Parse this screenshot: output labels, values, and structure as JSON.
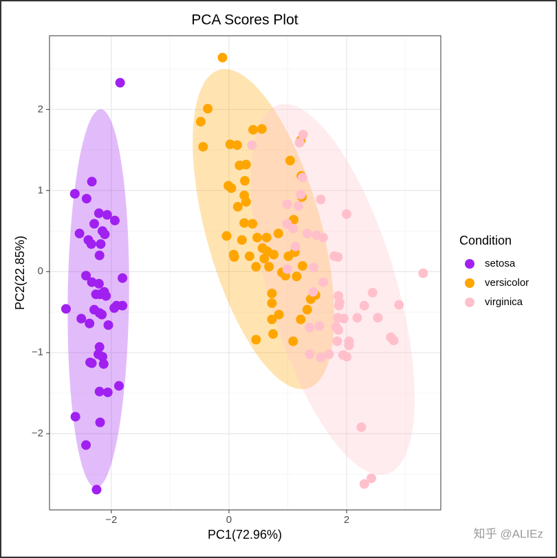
{
  "chart_data": {
    "type": "scatter",
    "title": "PCA Scores Plot",
    "x_label": "PC1(72.96%)",
    "y_label": "PC2(22.85%)",
    "legend_title": "Condition",
    "legend_position": "right",
    "grid": true,
    "ellipses": true,
    "xlim": [
      -3.05,
      3.6
    ],
    "ylim": [
      -2.94,
      2.91
    ],
    "xticks": [
      {
        "value": -2,
        "label": "−2"
      },
      0,
      2
    ],
    "yticks": [
      {
        "value": -2,
        "label": "−2"
      },
      {
        "value": -1,
        "label": "−1"
      },
      0,
      1,
      2
    ],
    "series": [
      {
        "name": "setosa",
        "color": "#a020f0",
        "x": [
          -1.85,
          -2.33,
          -2.62,
          -2.42,
          -2.21,
          -2.07,
          -1.94,
          -2.29,
          -2.54,
          -2.15,
          -2.11,
          -2.39,
          -2.34,
          -2.18,
          -2.2,
          -1.81,
          -2.43,
          -2.33,
          -2.21,
          -2.12,
          -2.19,
          -2.26,
          -2.09,
          -1.81,
          -1.91,
          -1.95,
          -2.77,
          -2.29,
          -2.2,
          -2.16,
          -2.51,
          -2.37,
          -2.05,
          -2.2,
          -2.22,
          -2.15,
          -2.36,
          -2.33,
          -2.13,
          -1.87,
          -2.2,
          -2.06,
          -2.61,
          -2.19,
          -2.43,
          -2.25
        ],
        "y": [
          2.33,
          1.11,
          0.96,
          0.9,
          0.72,
          0.7,
          0.63,
          0.59,
          0.47,
          0.5,
          0.46,
          0.39,
          0.34,
          0.34,
          0.2,
          -0.08,
          -0.05,
          -0.13,
          -0.15,
          -0.25,
          -0.28,
          -0.28,
          -0.3,
          -0.42,
          -0.42,
          -0.45,
          -0.46,
          -0.47,
          -0.51,
          -0.53,
          -0.58,
          -0.64,
          -0.66,
          -0.93,
          -1.02,
          -1.05,
          -1.12,
          -1.13,
          -1.14,
          -1.41,
          -1.48,
          -1.49,
          -1.79,
          -1.86,
          -2.14,
          -2.69
        ]
      },
      {
        "name": "versicolor",
        "color": "#ffa500",
        "x": [
          -0.11,
          -0.36,
          -0.48,
          0.56,
          0.41,
          -0.44,
          1.22,
          0.02,
          0.14,
          1.04,
          0.18,
          0.29,
          -0.01,
          0.04,
          0.27,
          1.23,
          0.26,
          0.15,
          0.29,
          1.24,
          1.1,
          1.02,
          0.26,
          0.4,
          -0.04,
          0.22,
          0.48,
          0.64,
          0.84,
          0.08,
          0.09,
          0.35,
          0.6,
          0.76,
          1.12,
          1.25,
          0.46,
          0.68,
          0.9,
          0.96,
          1.15,
          1.47,
          0.73,
          1.39,
          0.73,
          0.85,
          1.22,
          0.73,
          0.46,
          1.09,
          0.75,
          1.33,
          0.65,
          1.01,
          0.57
        ],
        "y": [
          2.64,
          2.01,
          1.85,
          1.76,
          1.75,
          1.54,
          1.62,
          1.57,
          1.56,
          1.37,
          1.31,
          1.32,
          1.06,
          1.03,
          1.12,
          1.18,
          0.94,
          0.8,
          0.86,
          0.92,
          0.64,
          0.59,
          0.6,
          0.59,
          0.44,
          0.39,
          0.42,
          0.42,
          0.47,
          0.21,
          0.18,
          0.19,
          0.16,
          0.21,
          0.24,
          0.07,
          0.06,
          0.06,
          -0.01,
          -0.05,
          -0.06,
          -0.29,
          -0.27,
          -0.34,
          -0.39,
          -0.53,
          -0.59,
          -0.59,
          -0.84,
          -0.86,
          -0.77,
          -0.47,
          0.25,
          0.19,
          0.29
        ]
      },
      {
        "name": "virginica",
        "color": "#ffc0cb",
        "x": [
          1.26,
          1.2,
          0.39,
          1.25,
          1.22,
          1.18,
          1.56,
          2.0,
          0.99,
          1.09,
          1.33,
          1.49,
          1.6,
          1.13,
          1.44,
          1.79,
          1.85,
          3.3,
          2.44,
          2.3,
          2.89,
          1.86,
          1.88,
          1.87,
          1.85,
          1.95,
          2.18,
          2.53,
          1.54,
          1.37,
          1.82,
          1.86,
          1.84,
          2.04,
          2.04,
          1.7,
          1.94,
          2.0,
          1.56,
          1.37,
          2.75,
          2.8,
          2.25,
          2.42,
          2.3,
          1.43,
          1.6,
          0.99,
          0.99
        ],
        "y": [
          1.69,
          1.59,
          1.56,
          1.16,
          0.95,
          0.81,
          0.89,
          0.71,
          0.59,
          0.53,
          0.47,
          0.45,
          0.42,
          0.31,
          0.05,
          0.19,
          0.18,
          -0.02,
          -0.26,
          -0.42,
          -0.41,
          -0.3,
          -0.38,
          -0.42,
          -0.57,
          -0.58,
          -0.57,
          -0.57,
          -0.67,
          -0.69,
          -0.68,
          -0.72,
          -0.86,
          -0.86,
          -0.91,
          -1.02,
          -1.03,
          -1.05,
          -1.06,
          -1.02,
          -0.81,
          -0.85,
          -1.92,
          -2.55,
          -2.62,
          -0.25,
          -0.13,
          0.83,
          0.03
        ]
      }
    ]
  },
  "watermark": "知乎 @ALIEz"
}
